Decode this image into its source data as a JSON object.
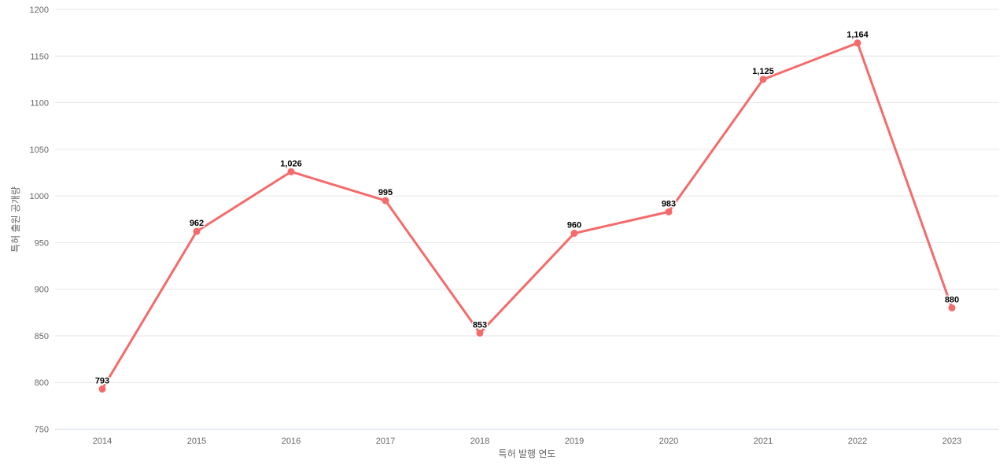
{
  "chart_data": {
    "type": "line",
    "title": "",
    "xlabel": "특허 발행 연도",
    "ylabel": "특허 출원 공개량",
    "categories": [
      "2014",
      "2015",
      "2016",
      "2017",
      "2018",
      "2019",
      "2020",
      "2021",
      "2022",
      "2023"
    ],
    "values": [
      793,
      962,
      1026,
      995,
      853,
      960,
      983,
      1125,
      1164,
      880
    ],
    "value_labels": [
      "793",
      "962",
      "1,026",
      "995",
      "853",
      "960",
      "983",
      "1,125",
      "1,164",
      "880"
    ],
    "y_ticks": [
      "750",
      "800",
      "850",
      "900",
      "950",
      "1000",
      "1050",
      "1100",
      "1150",
      "1200"
    ],
    "ylim": [
      750,
      1200
    ],
    "grid": true,
    "legend_position": "none",
    "colors": {
      "series": "#f56a6a",
      "grid_line": "#e6e6e6",
      "axis_line": "#ccd6eb",
      "tick_label": "#666666",
      "axis_title": "#666666",
      "data_label": "#000000",
      "background": "#ffffff"
    }
  }
}
